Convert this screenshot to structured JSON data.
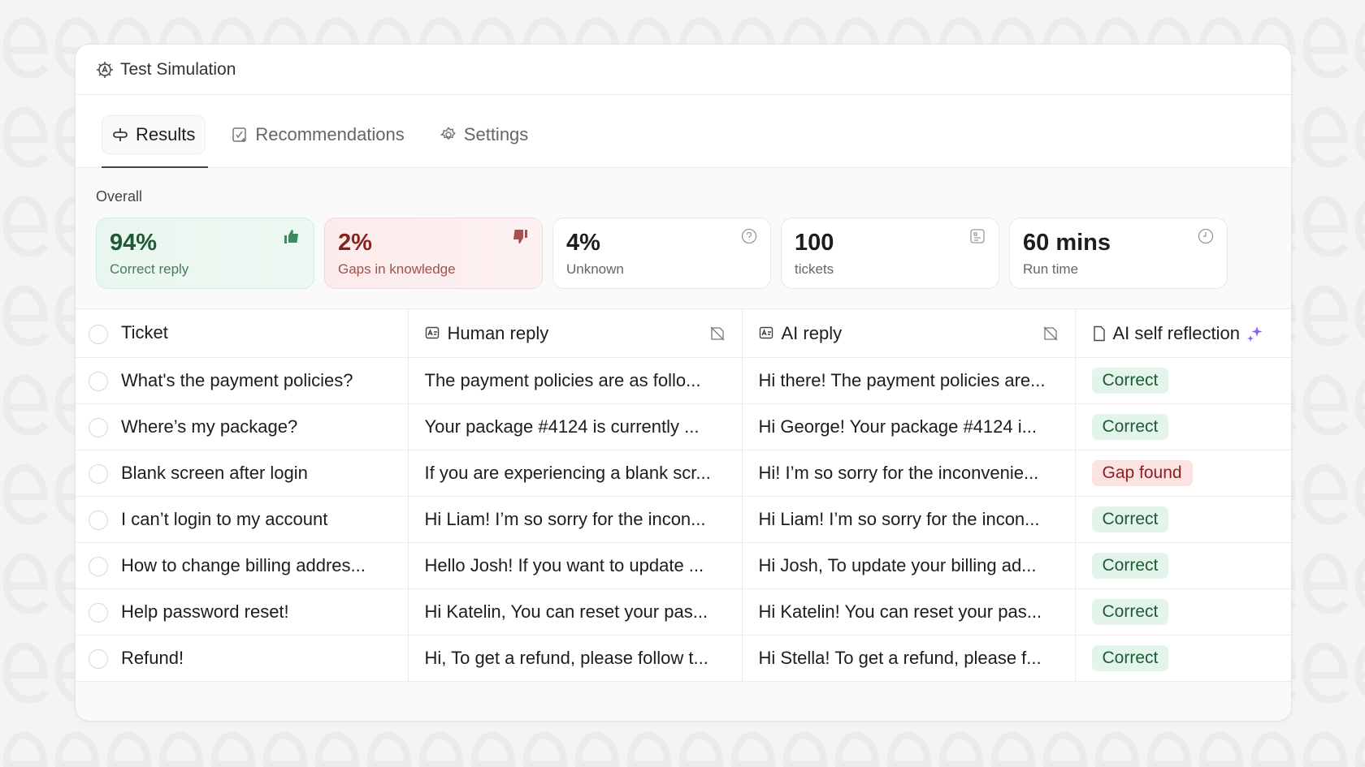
{
  "window": {
    "title": "Test Simulation"
  },
  "tabs": [
    {
      "label": "Results",
      "active": true
    },
    {
      "label": "Recommendations"
    },
    {
      "label": "Settings"
    }
  ],
  "overall": {
    "label": "Overall",
    "cards": [
      {
        "value": "94%",
        "label": "Correct reply",
        "icon": "thumbs-up-icon",
        "color": "#1e5a35"
      },
      {
        "value": "2%",
        "label": "Gaps in knowledge",
        "icon": "thumbs-down-icon",
        "color": "#8a1f1f"
      },
      {
        "value": "4%",
        "label": "Unknown",
        "icon": "question-icon"
      },
      {
        "value": "100",
        "label": "tickets",
        "icon": "ticket-icon"
      },
      {
        "value": "60 mins",
        "label": "Run time",
        "icon": "clock-icon"
      }
    ]
  },
  "table": {
    "headers": [
      "Ticket",
      "Human reply",
      "AI reply",
      "AI self reflection"
    ],
    "rows": [
      {
        "ticket": "What's the payment policies?",
        "human": "The payment policies are as follo...",
        "ai": "Hi there! The payment policies are...",
        "status": "Correct"
      },
      {
        "ticket": "Where’s my package?",
        "human": "Your package #4124 is currently ...",
        "ai": "Hi George! Your package #4124 i...",
        "status": "Correct"
      },
      {
        "ticket": "Blank screen after login",
        "human": "If you are experiencing a blank scr...",
        "ai": "Hi! I’m so sorry for the inconvenie...",
        "status": "Gap found"
      },
      {
        "ticket": "I can’t login to my account",
        "human": "Hi Liam! I’m so sorry for the incon...",
        "ai": "Hi Liam! I’m so sorry for the incon...",
        "status": "Correct"
      },
      {
        "ticket": "How to change billing addres...",
        "human": "Hello Josh! If you want to update ...",
        "ai": "Hi Josh, To update your billing ad...",
        "status": "Correct"
      },
      {
        "ticket": "Help password reset!",
        "human": "Hi Katelin, You can reset your pas...",
        "ai": "Hi Katelin! You can reset your pas...",
        "status": "Correct"
      },
      {
        "ticket": "Refund!",
        "human": "Hi, To get a refund, please follow t...",
        "ai": "Hi Stella! To get a refund, please f...",
        "status": "Correct"
      }
    ]
  },
  "colors": {
    "correct_bg": "#e3f5ea",
    "gap_bg": "#fbe3e3",
    "sparkle": "#8b5cf6"
  }
}
